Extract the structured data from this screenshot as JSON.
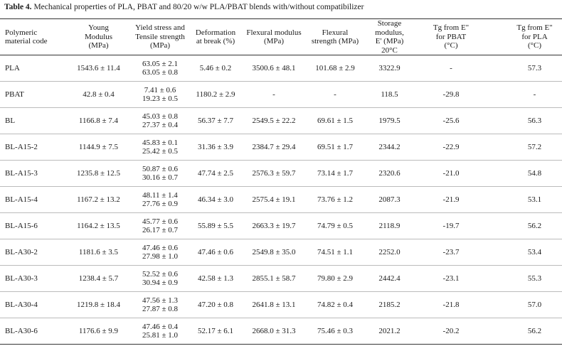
{
  "title": {
    "label": "Table 4.",
    "text": "Mechanical properties of PLA, PBAT and 80/20 w/w PLA/PBAT blends with/without compatibilizer"
  },
  "table": {
    "columns": [
      [
        "Polymeric",
        "material code"
      ],
      [
        "Young",
        "Modulus",
        "(MPa)"
      ],
      [
        "Yield stress and",
        "Tensile strength",
        "(MPa)"
      ],
      [
        "Deformation",
        "at break (%)"
      ],
      [
        "Flexural modulus",
        "(MPa)"
      ],
      [
        "Flexural",
        "strength (MPa)"
      ],
      [
        "Storage modulus,",
        "E' (MPa)",
        "20°C"
      ],
      [
        "Tg from E\"",
        "for PBAT",
        "(°C)"
      ],
      [
        "Tg from E\"",
        "for PLA",
        "(°C)"
      ]
    ],
    "rows": [
      [
        "PLA",
        "1543.6 ± 11.4",
        [
          "63.05 ± 2.1",
          "63.05 ± 0.8"
        ],
        "5.46 ± 0.2",
        "3500.6 ± 48.1",
        "101.68 ± 2.9",
        "3322.9",
        "-",
        "57.3"
      ],
      [
        "PBAT",
        "42.8 ± 0.4",
        [
          "7.41 ± 0.6",
          "19.23 ± 0.5"
        ],
        "1180.2 ± 2.9",
        "-",
        "-",
        "118.5",
        "-29.8",
        "-"
      ],
      [
        "BL",
        "1166.8 ± 7.4",
        [
          "45.03 ± 0.8",
          "27.37 ± 0.4"
        ],
        "56.37 ± 7.7",
        "2549.5 ± 22.2",
        "69.61 ± 1.5",
        "1979.5",
        "-25.6",
        "56.3"
      ],
      [
        "BL-A15-2",
        "1144.9 ± 7.5",
        [
          "45.83 ± 0.1",
          "25.42 ± 0.5"
        ],
        "31.36 ± 3.9",
        "2384.7 ± 29.4",
        "69.51 ± 1.7",
        "2344.2",
        "-22.9",
        "57.2"
      ],
      [
        "BL-A15-3",
        "1235.8 ± 12.5",
        [
          "50.87 ± 0.6",
          "30.16 ± 0.7"
        ],
        "47.74 ± 2.5",
        "2576.3 ± 59.7",
        "73.14 ± 1.7",
        "2320.6",
        "-21.0",
        "54.8"
      ],
      [
        "BL-A15-4",
        "1167.2 ± 13.2",
        [
          "48.11 ± 1.4",
          "27.76 ± 0.9"
        ],
        "46.34 ± 3.0",
        "2575.4 ± 19.1",
        "73.76 ± 1.2",
        "2087.3",
        "-21.9",
        "53.1"
      ],
      [
        "BL-A15-6",
        "1164.2 ± 13.5",
        [
          "45.77 ± 0.6",
          "26.17 ± 0.7"
        ],
        "55.89 ± 5.5",
        "2663.3 ± 19.7",
        "74.79 ± 0.5",
        "2118.9",
        "-19.7",
        "56.2"
      ],
      [
        "BL-A30-2",
        "1181.6 ± 3.5",
        [
          "47.46 ± 0.6",
          "27.98 ± 1.0"
        ],
        "47.46 ± 0.6",
        "2549.8 ± 35.0",
        "74.51 ± 1.1",
        "2252.0",
        "-23.7",
        "53.4"
      ],
      [
        "BL-A30-3",
        "1238.4 ± 5.7",
        [
          "52.52 ± 0.6",
          "30.94 ± 0.9"
        ],
        "42.58 ± 1.3",
        "2855.1 ± 58.7",
        "79.80 ± 2.9",
        "2442.4",
        "-23.1",
        "55.3"
      ],
      [
        "BL-A30-4",
        "1219.8 ± 18.4",
        [
          "47.56 ± 1.3",
          "27.87 ± 0.8"
        ],
        "47.20 ± 0.8",
        "2641.8 ± 13.1",
        "74.82 ± 0.4",
        "2185.2",
        "-21.8",
        "57.0"
      ],
      [
        "BL-A30-6",
        "1176.6 ± 9.9",
        [
          "47.46 ± 0.4",
          "25.81 ± 1.0"
        ],
        "52.17 ± 6.1",
        "2668.0 ± 31.3",
        "75.46 ± 0.3",
        "2021.2",
        "-20.2",
        "56.2"
      ]
    ]
  }
}
